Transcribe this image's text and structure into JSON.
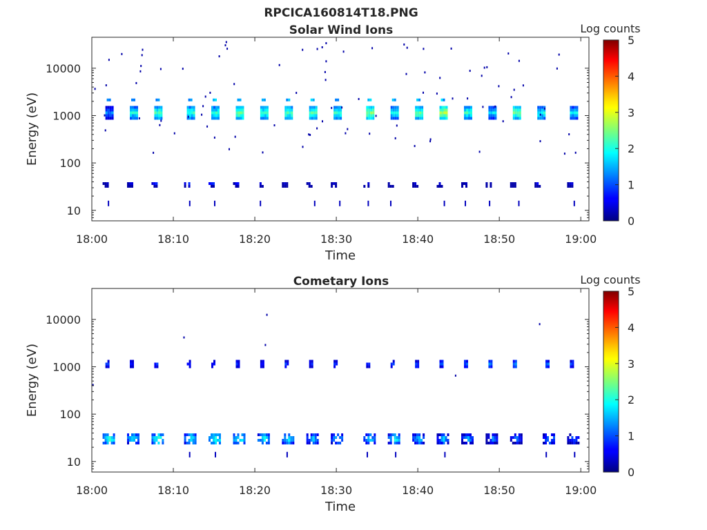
{
  "figure": {
    "main_title": "RPCICA160814T18.PNG"
  },
  "chart_data": [
    {
      "type": "heatmap",
      "title": "Solar Wind Ions",
      "xlabel": "Time",
      "ylabel": "Energy (eV)",
      "x_range": [
        "18:00",
        "19:01"
      ],
      "x_ticks": [
        "18:00",
        "18:10",
        "18:20",
        "18:30",
        "18:40",
        "18:50",
        "19:00"
      ],
      "y_scale": "log",
      "y_range": [
        6,
        45000
      ],
      "y_ticks": [
        "10",
        "100",
        "1000",
        "10000"
      ],
      "colorbar": {
        "label": "Log counts",
        "range": [
          0,
          5
        ],
        "ticks": [
          "0",
          "1",
          "2",
          "3",
          "4",
          "5"
        ],
        "colormap": "jet"
      },
      "bursts": [
        {
          "t": "18:02",
          "level_1000": 1.5,
          "level_30": 0.8,
          "has_2000": true
        },
        {
          "t": "18:05",
          "level_1000": 2.2,
          "level_30": 0.8,
          "has_2000": true
        },
        {
          "t": "18:08",
          "level_1000": 2.5,
          "level_30": 1.0,
          "has_2000": true
        },
        {
          "t": "18:12",
          "level_1000": 2.3,
          "level_30": 1.0,
          "has_2000": true
        },
        {
          "t": "18:15",
          "level_1000": 2.3,
          "level_30": 1.2,
          "has_2000": true
        },
        {
          "t": "18:18",
          "level_1000": 2.7,
          "level_30": 0.8,
          "has_2000": true
        },
        {
          "t": "18:21",
          "level_1000": 2.4,
          "level_30": 0.8,
          "has_2000": true
        },
        {
          "t": "18:24",
          "level_1000": 2.5,
          "level_30": 0.6,
          "has_2000": true
        },
        {
          "t": "18:27",
          "level_1000": 2.5,
          "level_30": 0.6,
          "has_2000": true
        },
        {
          "t": "18:30",
          "level_1000": 2.3,
          "level_30": 0.6,
          "has_2000": true
        },
        {
          "t": "18:34",
          "level_1000": 2.7,
          "level_30": 0.6,
          "has_2000": true
        },
        {
          "t": "18:37",
          "level_1000": 2.2,
          "level_30": 0.6,
          "has_2000": true
        },
        {
          "t": "18:40",
          "level_1000": 2.6,
          "level_30": 0.6,
          "has_2000": true
        },
        {
          "t": "18:43",
          "level_1000": 2.9,
          "level_30": 0.6,
          "has_2000": true
        },
        {
          "t": "18:46",
          "level_1000": 2.4,
          "level_30": 0.6,
          "has_2000": false
        },
        {
          "t": "18:49",
          "level_1000": 2.0,
          "level_30": 0.6,
          "has_2000": false
        },
        {
          "t": "18:52",
          "level_1000": 2.6,
          "level_30": 0.6,
          "has_2000": false
        },
        {
          "t": "18:55",
          "level_1000": 2.2,
          "level_30": 0.8,
          "has_2000": false
        },
        {
          "t": "18:59",
          "level_1000": 2.0,
          "level_30": 0.6,
          "has_2000": false
        }
      ]
    },
    {
      "type": "heatmap",
      "title": "Cometary Ions",
      "xlabel": "Time",
      "ylabel": "Energy (eV)",
      "x_range": [
        "18:00",
        "19:01"
      ],
      "x_ticks": [
        "18:00",
        "18:10",
        "18:20",
        "18:30",
        "18:40",
        "18:50",
        "19:00"
      ],
      "y_scale": "log",
      "y_range": [
        6,
        45000
      ],
      "y_ticks": [
        "10",
        "100",
        "1000",
        "10000"
      ],
      "colorbar": {
        "label": "Log counts",
        "range": [
          0,
          5
        ],
        "ticks": [
          "0",
          "1",
          "2",
          "3",
          "4",
          "5"
        ],
        "colormap": "jet"
      },
      "bursts": [
        {
          "t": "18:02",
          "level_1000": 1.0,
          "level_30": 2.5
        },
        {
          "t": "18:05",
          "level_1000": 1.0,
          "level_30": 2.2
        },
        {
          "t": "18:08",
          "level_1000": 1.0,
          "level_30": 2.5
        },
        {
          "t": "18:12",
          "level_1000": 1.0,
          "level_30": 2.3
        },
        {
          "t": "18:15",
          "level_1000": 1.0,
          "level_30": 2.5
        },
        {
          "t": "18:18",
          "level_1000": 1.0,
          "level_30": 2.4
        },
        {
          "t": "18:21",
          "level_1000": 1.0,
          "level_30": 2.3
        },
        {
          "t": "18:24",
          "level_1000": 1.0,
          "level_30": 2.2
        },
        {
          "t": "18:27",
          "level_1000": 1.0,
          "level_30": 2.0
        },
        {
          "t": "18:30",
          "level_1000": 1.0,
          "level_30": 2.0
        },
        {
          "t": "18:34",
          "level_1000": 1.0,
          "level_30": 2.0
        },
        {
          "t": "18:37",
          "level_1000": 1.0,
          "level_30": 2.3
        },
        {
          "t": "18:40",
          "level_1000": 1.2,
          "level_30": 2.0
        },
        {
          "t": "18:43",
          "level_1000": 1.2,
          "level_30": 2.0
        },
        {
          "t": "18:46",
          "level_1000": 1.3,
          "level_30": 1.8
        },
        {
          "t": "18:49",
          "level_1000": 1.5,
          "level_30": 1.6
        },
        {
          "t": "18:52",
          "level_1000": 1.5,
          "level_30": 1.6
        },
        {
          "t": "18:56",
          "level_1000": 1.3,
          "level_30": 1.8
        },
        {
          "t": "18:59",
          "level_1000": 1.2,
          "level_30": 1.5
        }
      ]
    }
  ]
}
